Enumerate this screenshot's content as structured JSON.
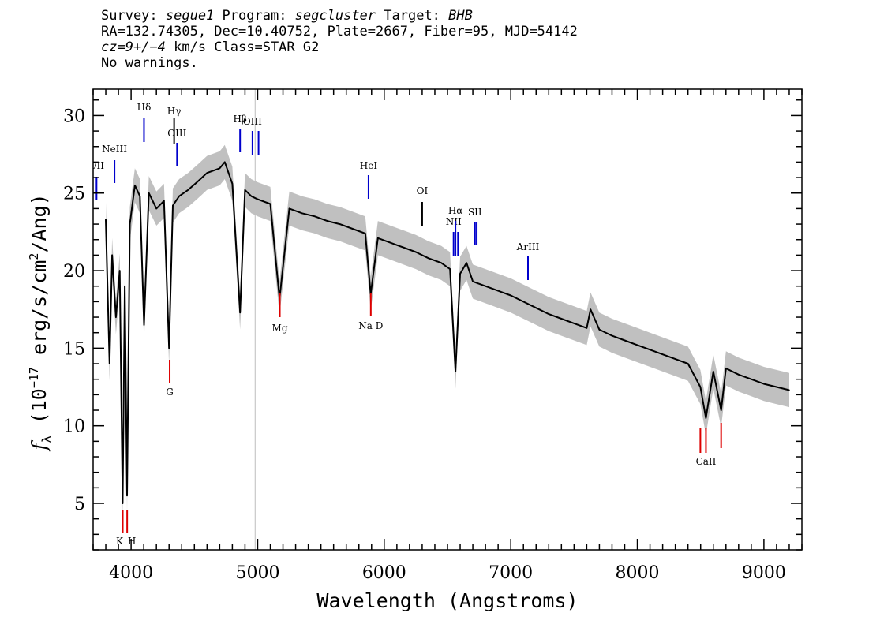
{
  "header": {
    "line1": {
      "p1": "Survey: ",
      "survey": "segue1",
      "p2": " Program: ",
      "program": "segcluster",
      "p3": " Target: ",
      "target": "BHB"
    },
    "line2": "RA=132.74305, Dec=10.40752, Plate=2667, Fiber=95, MJD=54142",
    "line3": {
      "cz": "cz=9+/−4",
      "rest": " km/s Class=STAR G2"
    },
    "line4": "No warnings."
  },
  "colors": {
    "flux": "#000000",
    "error_band": "#c0c0c0",
    "emission": "#0000cc",
    "absorption": "#dd0000",
    "sky": "#000000"
  },
  "chart_data": {
    "type": "line",
    "xlabel": "Wavelength (Angstroms)",
    "ylabel_parts": {
      "f": "f",
      "lambda": "λ",
      "open": " (10",
      "exp": "−17",
      "units": " erg/s/cm",
      "sq": "2",
      "close": "/Ang)"
    },
    "xlim": [
      3700,
      9300
    ],
    "ylim": [
      2,
      31.7
    ],
    "xticks": [
      4000,
      5000,
      6000,
      7000,
      8000,
      9000
    ],
    "yticks": [
      5,
      10,
      15,
      20,
      25,
      30
    ],
    "grid": false,
    "vertical_marker_x": 4980,
    "series": [
      {
        "x": [
          3800,
          3830,
          3850,
          3880,
          3910,
          3933,
          3950,
          3968,
          3990,
          4030,
          4070,
          4102,
          4140,
          4200,
          4260,
          4300,
          4330,
          4380,
          4450,
          4520,
          4600,
          4700,
          4740,
          4800,
          4861,
          4900,
          4950,
          5000,
          5100,
          5173,
          5250,
          5350,
          5450,
          5550,
          5650,
          5750,
          5850,
          5893,
          5950,
          6050,
          6150,
          6250,
          6350,
          6450,
          6520,
          6563,
          6600,
          6650,
          6700,
          6800,
          6900,
          7000,
          7100,
          7200,
          7300,
          7400,
          7500,
          7600,
          7630,
          7700,
          7800,
          7900,
          8000,
          8100,
          8200,
          8300,
          8400,
          8498,
          8542,
          8600,
          8662,
          8700,
          8800,
          8900,
          9000,
          9100,
          9200
        ],
        "values": [
          23.3,
          14.0,
          21.0,
          17.0,
          20.0,
          5.0,
          19.0,
          5.5,
          23.0,
          25.5,
          24.8,
          16.5,
          25.0,
          24.0,
          24.5,
          15.0,
          24.2,
          24.8,
          25.2,
          25.7,
          26.3,
          26.6,
          27.0,
          25.6,
          17.3,
          25.2,
          24.8,
          24.6,
          24.3,
          18.2,
          24.0,
          23.7,
          23.5,
          23.2,
          23.0,
          22.7,
          22.4,
          18.5,
          22.1,
          21.8,
          21.5,
          21.2,
          20.8,
          20.5,
          20.1,
          13.5,
          19.8,
          20.5,
          19.3,
          19.0,
          18.7,
          18.4,
          18.0,
          17.6,
          17.2,
          16.9,
          16.6,
          16.3,
          17.5,
          16.2,
          15.8,
          15.5,
          15.2,
          14.9,
          14.6,
          14.3,
          14.0,
          12.5,
          10.5,
          13.5,
          11.0,
          13.7,
          13.3,
          13.0,
          12.7,
          12.5,
          12.3
        ]
      }
    ],
    "emission_lines": [
      {
        "label": "OII",
        "x": 3727
      },
      {
        "label": "NeIII",
        "x": 3869
      },
      {
        "label": "Hδ",
        "x": 4102
      },
      {
        "label": "Hγ",
        "x": 4340
      },
      {
        "label": "OIII",
        "x": 4363
      },
      {
        "label": "Hβ",
        "x": 4861
      },
      {
        "label": "OIII",
        "x": 4959
      },
      {
        "label": "OIII",
        "x": 5007
      },
      {
        "label": "HeI",
        "x": 5876
      },
      {
        "label": "OI",
        "x": 6300
      },
      {
        "label": "NII",
        "x": 6548
      },
      {
        "label": "Hα",
        "x": 6563
      },
      {
        "label": "NII",
        "x": 6583
      },
      {
        "label": "SII",
        "x": 6717
      },
      {
        "label": "SII",
        "x": 6731
      },
      {
        "label": "ArIII",
        "x": 7136
      }
    ],
    "absorption_lines": [
      {
        "label": "K",
        "x": 3934
      },
      {
        "label": "H",
        "x": 3969
      },
      {
        "label": "G",
        "x": 4305
      },
      {
        "label": "Mg",
        "x": 5175
      },
      {
        "label": "Na D",
        "x": 5894
      },
      {
        "label": "CaII",
        "x": 8498
      },
      {
        "label": "CaII",
        "x": 8542
      },
      {
        "label": "CaII",
        "x": 8662
      }
    ]
  }
}
